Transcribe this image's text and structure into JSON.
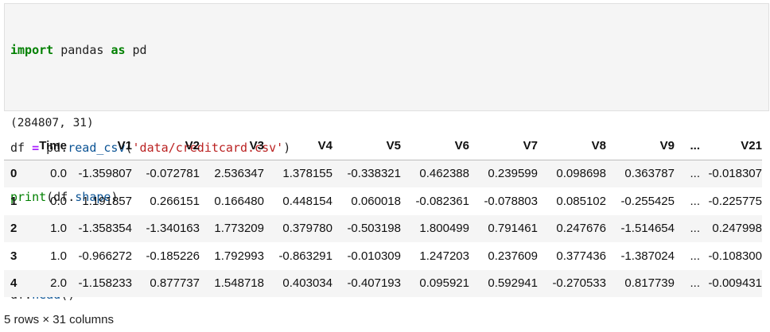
{
  "code": {
    "line1": {
      "kw1": "import",
      "mid": " pandas ",
      "kw2": "as",
      "end": " pd"
    },
    "line3": {
      "a": "df ",
      "op": "=",
      "b": " pd.",
      "fn": "read_csv",
      "c": "(",
      "str": "'data/creditcard.csv'",
      "d": ")"
    },
    "line4": {
      "fn": "print",
      "a": "(df.",
      "attr": "shape",
      "b": ")"
    },
    "line6": {
      "a": "df.",
      "fn": "head",
      "b": "()"
    }
  },
  "stdout": "(284807, 31)",
  "table": {
    "columns": [
      "",
      "Time",
      "V1",
      "V2",
      "V3",
      "V4",
      "V5",
      "V6",
      "V7",
      "V8",
      "V9",
      "...",
      "V21"
    ],
    "rows": [
      [
        "0",
        "0.0",
        "-1.359807",
        "-0.072781",
        "2.536347",
        "1.378155",
        "-0.338321",
        "0.462388",
        "0.239599",
        "0.098698",
        "0.363787",
        "...",
        "-0.018307"
      ],
      [
        "1",
        "0.0",
        "1.191857",
        "0.266151",
        "0.166480",
        "0.448154",
        "0.060018",
        "-0.082361",
        "-0.078803",
        "0.085102",
        "-0.255425",
        "...",
        "-0.225775"
      ],
      [
        "2",
        "1.0",
        "-1.358354",
        "-1.340163",
        "1.773209",
        "0.379780",
        "-0.503198",
        "1.800499",
        "0.791461",
        "0.247676",
        "-1.514654",
        "...",
        "0.247998"
      ],
      [
        "3",
        "1.0",
        "-0.966272",
        "-0.185226",
        "1.792993",
        "-0.863291",
        "-0.010309",
        "1.247203",
        "0.237609",
        "0.377436",
        "-1.387024",
        "...",
        "-0.108300"
      ],
      [
        "4",
        "2.0",
        "-1.158233",
        "0.877737",
        "1.548718",
        "0.403034",
        "-0.407193",
        "0.095921",
        "0.592941",
        "-0.270533",
        "0.817739",
        "...",
        "-0.009431"
      ]
    ]
  },
  "footer": "5 rows × 31 columns"
}
